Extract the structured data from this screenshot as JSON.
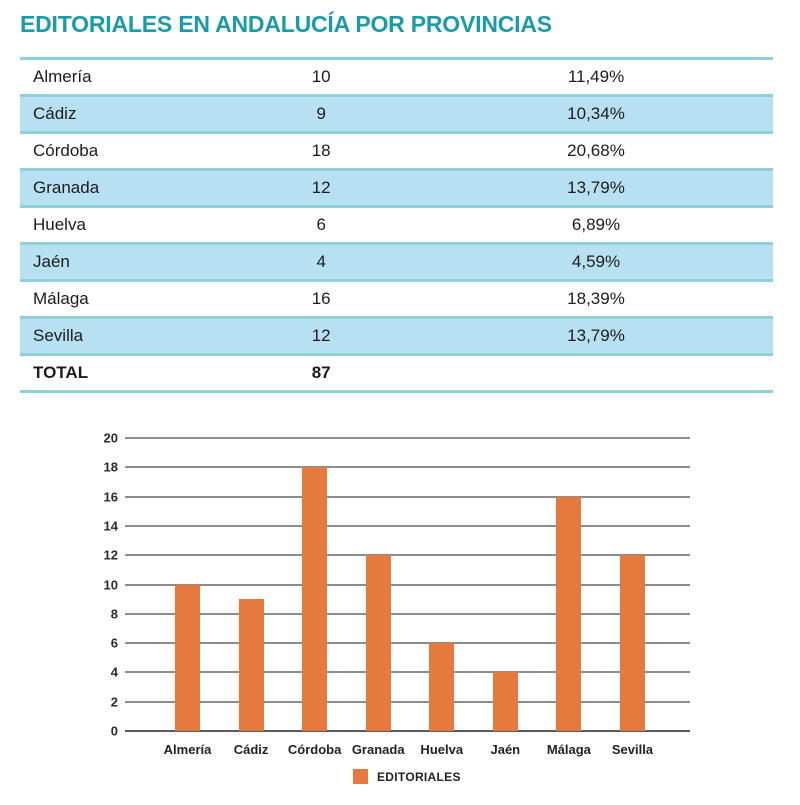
{
  "page": {
    "title": "EDITORIALES EN ANDALUCÍA POR PROVINCIAS"
  },
  "colors": {
    "teal_accent": "#1A9BAA",
    "row_blue": "#B7E0F2",
    "row_border": "#8FCEDB",
    "bar_orange": "#E6793D",
    "gridline_gray": "#8C8C8C",
    "zero_line_gray": "#5A5A5A"
  },
  "table": {
    "rows": [
      {
        "province": "Almería",
        "count": "10",
        "percent": "11,49%"
      },
      {
        "province": "Cádiz",
        "count": "9",
        "percent": "10,34%"
      },
      {
        "province": "Córdoba",
        "count": "18",
        "percent": "20,68%"
      },
      {
        "province": "Granada",
        "count": "12",
        "percent": "13,79%"
      },
      {
        "province": "Huelva",
        "count": "6",
        "percent": "6,89%"
      },
      {
        "province": "Jaén",
        "count": "4",
        "percent": "4,59%"
      },
      {
        "province": "Málaga",
        "count": "16",
        "percent": "18,39%"
      },
      {
        "province": "Sevilla",
        "count": "12",
        "percent": "13,79%"
      }
    ],
    "total": {
      "label": "TOTAL",
      "count": "87",
      "percent": ""
    }
  },
  "chart_data": {
    "type": "bar",
    "categories": [
      "Almería",
      "Cádiz",
      "Córdoba",
      "Granada",
      "Huelva",
      "Jaén",
      "Málaga",
      "Sevilla"
    ],
    "values": [
      10,
      9,
      18,
      12,
      6,
      4,
      16,
      12
    ],
    "series_name": "EDITORIALES",
    "title": "",
    "xlabel": "",
    "ylabel": "",
    "ylim": [
      0,
      20
    ],
    "yticks": [
      0,
      2,
      4,
      6,
      8,
      10,
      12,
      14,
      16,
      18,
      20
    ],
    "grid": true,
    "legend_position": "bottom-center",
    "bar_color": "#E6793D"
  },
  "legend": {
    "label": "EDITORIALES"
  }
}
